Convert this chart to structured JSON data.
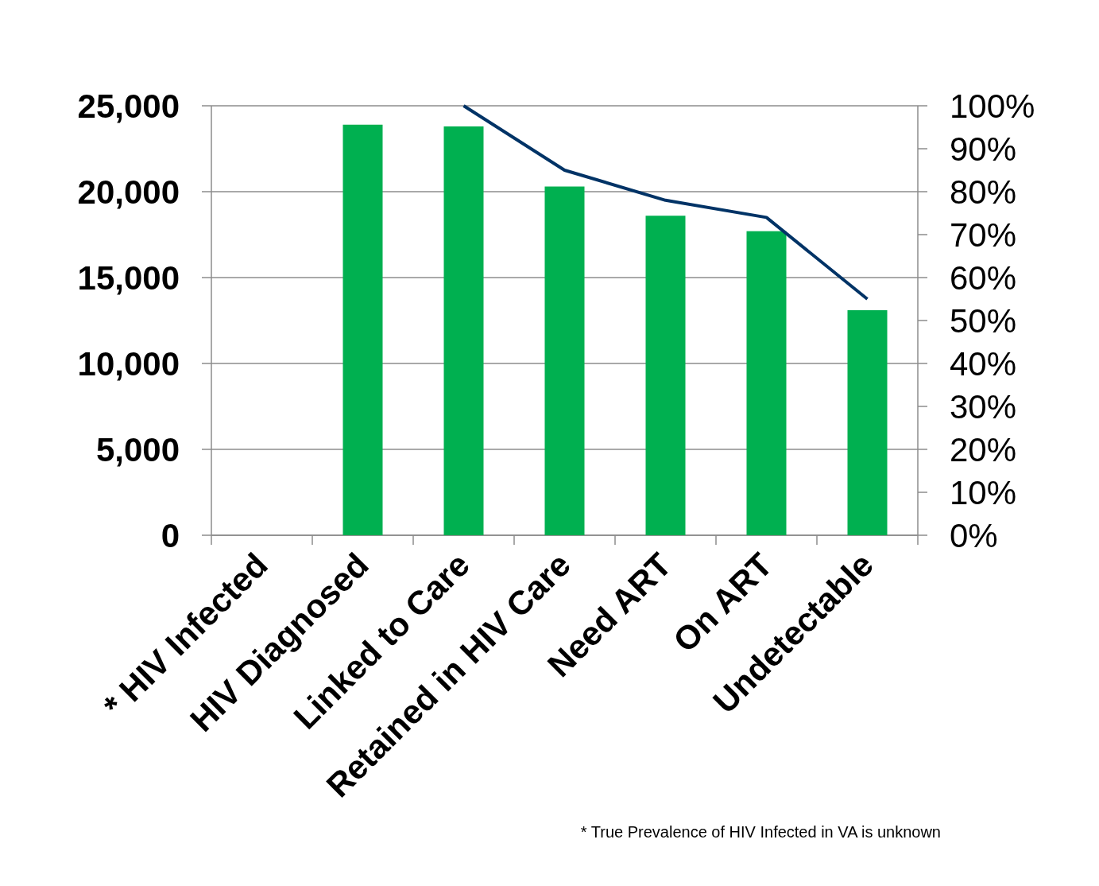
{
  "chart_data": {
    "type": "bar",
    "categories": [
      "* HIV Infected",
      "HIV Diagnosed",
      "Linked to Care",
      "Retained in HIV Care",
      "Need ART",
      "On ART",
      "Undetectable"
    ],
    "series": [
      {
        "color": "#00b050",
        "values": [
          null,
          23900,
          23800,
          20300,
          18600,
          17700,
          13100
        ]
      },
      {
        "type": "line",
        "axis": "y2",
        "color": "#003366",
        "values": [
          null,
          null,
          100,
          85,
          78,
          74,
          55
        ]
      }
    ],
    "ylim": [
      0,
      25000
    ],
    "yticks": [
      {
        "value": 0,
        "label": "0"
      },
      {
        "value": 5000,
        "label": "5,000"
      },
      {
        "value": 10000,
        "label": "10,000"
      },
      {
        "value": 15000,
        "label": "15,000"
      },
      {
        "value": 20000,
        "label": "20,000"
      },
      {
        "value": 25000,
        "label": "25,000"
      }
    ],
    "y2lim": [
      0,
      100
    ],
    "y2ticks": [
      {
        "value": 0,
        "label": "0%"
      },
      {
        "value": 10,
        "label": "10%"
      },
      {
        "value": 20,
        "label": "20%"
      },
      {
        "value": 30,
        "label": "30%"
      },
      {
        "value": 40,
        "label": "40%"
      },
      {
        "value": 50,
        "label": "50%"
      },
      {
        "value": 60,
        "label": "60%"
      },
      {
        "value": 70,
        "label": "70%"
      },
      {
        "value": 80,
        "label": "80%"
      },
      {
        "value": 90,
        "label": "90%"
      },
      {
        "value": 100,
        "label": "100%"
      }
    ],
    "grid": "y",
    "marker": "none",
    "line_style": "solid",
    "annotations": [
      "* True Prevalence of HIV Infected in VA is unknown"
    ]
  }
}
